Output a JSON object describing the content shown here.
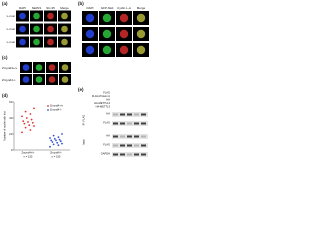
{
  "panel_a": {
    "label": "(a)",
    "columns": [
      "DAPI",
      "Nkd5/1",
      "SC-35",
      "Merge"
    ],
    "rows": [
      "L-muc",
      "L-muc",
      "L-muc"
    ]
  },
  "panel_b": {
    "label": "(b)",
    "columns": [
      "DAPI",
      "GFP-Nkd",
      "Cyclin L-A",
      "Merge"
    ]
  },
  "panel_c": {
    "label": "(c)",
    "rows": [
      "Zmynd4+/+",
      "Zmynd4-/-"
    ]
  },
  "chart_data": {
    "type": "strip",
    "label": "(d)",
    "y_label": "Number of nuclei with foci",
    "categories": [
      "Zmynd4+/+",
      "Zmynd4-/-"
    ],
    "series": [
      {
        "name": "Zmynd4+/+",
        "color": "#e03030",
        "values": [
          22,
          25,
          28,
          30,
          31,
          33,
          34,
          35,
          36,
          38,
          40,
          42,
          45,
          48,
          52
        ]
      },
      {
        "name": "Zmynd4-/-",
        "color": "#3050d0",
        "values": [
          4,
          6,
          7,
          8,
          9,
          10,
          11,
          12,
          12,
          13,
          14,
          15,
          16,
          18,
          20
        ]
      }
    ],
    "annotations": [
      "n = 150",
      "n = 150"
    ],
    "ylim": [
      0,
      60
    ],
    "yticks": [
      0,
      20,
      40,
      60
    ]
  },
  "panel_e": {
    "label": "(e)",
    "conditions": [
      "FLAG",
      "FLAG-Protein A",
      "HA",
      "HA-METTL14",
      "HA-METTL3"
    ],
    "groups": [
      "IP: FLAG",
      "Input"
    ],
    "blots": [
      "HA",
      "FLAG",
      "HA",
      "FLAG",
      "GAPDH"
    ]
  }
}
